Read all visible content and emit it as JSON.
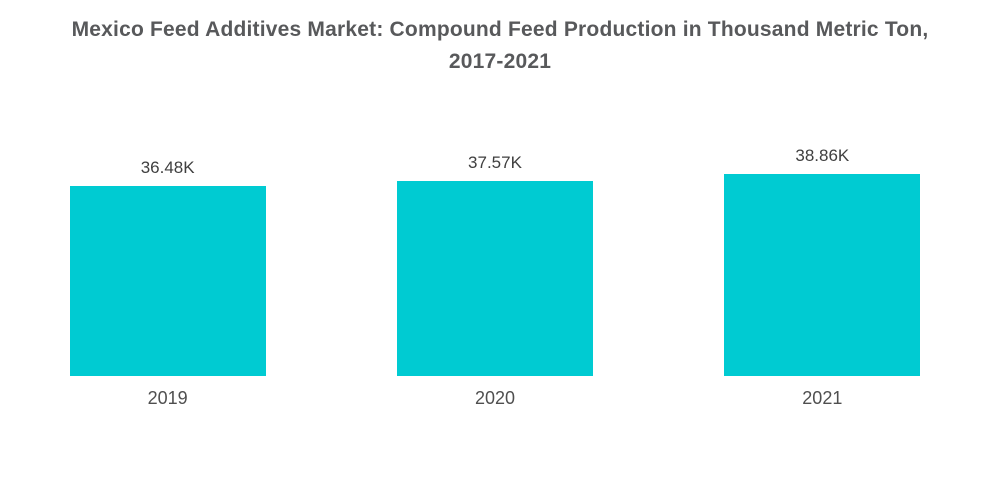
{
  "header": {
    "title_display": "Mexico Feed Additives Market: Compound Feed Production in Thousand Metric Ton,\n2017-2021"
  },
  "chart_data": {
    "type": "bar",
    "title": "Mexico Feed Additives Market: Compound Feed Production in Thousand Metric Ton, 2017-2021",
    "categories": [
      "2019",
      "2020",
      "2021"
    ],
    "values": [
      36.48,
      37.57,
      38.86
    ],
    "value_labels": [
      "36.48K",
      "37.57K",
      "38.86K"
    ],
    "unit": "Thousand Metric Ton",
    "xlabel": "",
    "ylabel": "",
    "ylim": [
      0,
      38.86
    ],
    "grid": false,
    "legend": "none",
    "bar_color": "#00CBD2"
  },
  "colors": {
    "background": "#ffffff",
    "bar": "#00CBD2",
    "title_text": "#58595B",
    "value_label_text": "#3F3F3F",
    "axis_label_text": "#4F4F4F"
  }
}
